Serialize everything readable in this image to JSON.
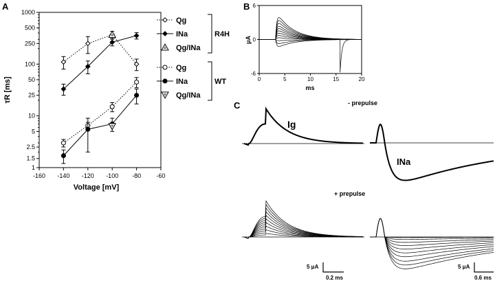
{
  "panel_labels": {
    "a": "A",
    "b": "B",
    "c": "C"
  },
  "chart_data": [
    {
      "type": "line",
      "panel": "A",
      "title": "",
      "xlabel": "Voltage [mV]",
      "ylabel": "τR [ms]",
      "yscale": "log",
      "xlim": [
        -160,
        -60
      ],
      "ylim": [
        1,
        1000
      ],
      "xticks": [
        "-160",
        "-140",
        "-120",
        "-100",
        "-80",
        "-60"
      ],
      "yticks": [
        "1",
        "1.5",
        "2.5",
        "5",
        "10",
        "25",
        "50",
        "100",
        "250",
        "500",
        "1000"
      ],
      "series": [
        {
          "name": "Qg",
          "group": "R4H",
          "marker": "open-diamond",
          "line": "dotted",
          "x": [
            -140,
            -120,
            -100,
            -80
          ],
          "y": [
            110,
            250,
            370,
            100
          ],
          "err": [
            30,
            90,
            60,
            25
          ]
        },
        {
          "name": "INa",
          "group": "R4H",
          "marker": "filled-diamond",
          "line": "solid",
          "x": [
            -140,
            -120,
            -100,
            -80
          ],
          "y": [
            33,
            90,
            265,
            355
          ],
          "err": [
            8,
            25,
            40,
            50
          ]
        },
        {
          "name": "Qg/INa",
          "group": "R4H",
          "marker": "open-triangle-up",
          "x": [
            -100
          ],
          "y": [
            370
          ]
        },
        {
          "name": "Qg",
          "group": "WT",
          "marker": "open-circle",
          "line": "dotted",
          "x": [
            -140,
            -120,
            -100,
            -80
          ],
          "y": [
            3.0,
            6.5,
            15,
            45
          ],
          "err": [
            0.5,
            1.0,
            3,
            10
          ]
        },
        {
          "name": "INa",
          "group": "WT",
          "marker": "filled-circle",
          "line": "solid",
          "x": [
            -140,
            -120,
            -100,
            -80
          ],
          "y": [
            1.7,
            5.5,
            7.0,
            25
          ],
          "err": [
            0.5,
            3.5,
            2.0,
            8
          ]
        },
        {
          "name": "Qg/INa",
          "group": "WT",
          "marker": "open-triangle-down",
          "x": [
            -100
          ],
          "y": [
            6.3
          ]
        }
      ],
      "legend": {
        "groups": [
          {
            "name": "R4H",
            "entries": [
              "Qg",
              "INa",
              "Qg/INa"
            ]
          },
          {
            "name": "WT",
            "entries": [
              "Qg",
              "INa",
              "Qg/INa"
            ]
          }
        ]
      }
    },
    {
      "type": "line",
      "panel": "B",
      "xlabel": "ms",
      "ylabel": "μA",
      "xlim": [
        0,
        20
      ],
      "ylim": [
        -6,
        6
      ],
      "xticks": [
        "0",
        "5",
        "10",
        "15",
        "20"
      ],
      "yticks": [
        "6",
        "0",
        "-6"
      ],
      "trace_peaks_uA": [
        3.8,
        3.3,
        2.8,
        2.3,
        1.9,
        1.5,
        1.1,
        0.7,
        0.3,
        -0.2,
        -0.7,
        -1.2
      ],
      "pulse_on_ms": 3.2,
      "pulse_off_ms": 15.8,
      "tail_peak_uA": -5.8
    },
    {
      "type": "line",
      "panel": "C",
      "conditions": [
        "- prepulse",
        "+ prepulse"
      ],
      "trace_labels": {
        "ig": "Ig",
        "ina": "INa"
      },
      "scale_bar_left": {
        "current": "5 μA",
        "time": "0.2 ms"
      },
      "scale_bar_right": {
        "current": "5 μA",
        "time": "0.6 ms"
      },
      "prepulse_ig_amplitudes": [
        1.0,
        0.9,
        0.8,
        0.7,
        0.6,
        0.5,
        0.4,
        0.3,
        0.2,
        0.1
      ],
      "prepulse_ina_depths": [
        1.0,
        0.88,
        0.76,
        0.62,
        0.5,
        0.38,
        0.27,
        0.17,
        0.08,
        0.02
      ]
    }
  ]
}
